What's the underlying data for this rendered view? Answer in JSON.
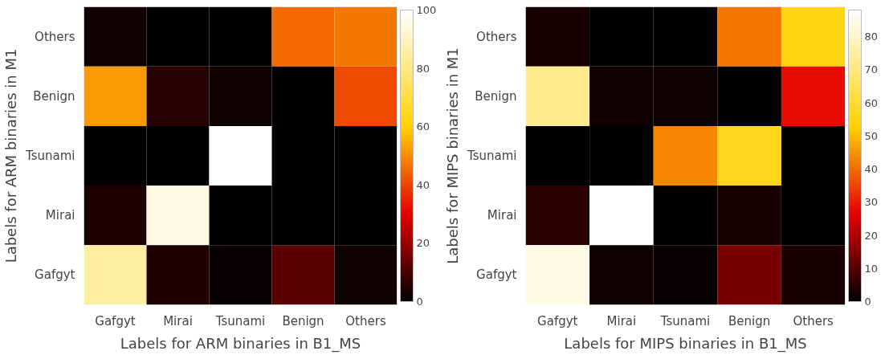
{
  "chart_data": [
    {
      "type": "heatmap",
      "xlabel": "Labels for ARM binaries in B1_MS",
      "ylabel": "Labels for ARM binaries in M1",
      "categories": [
        "Gafgyt",
        "Mirai",
        "Tsunami",
        "Benign",
        "Others"
      ],
      "y_categories": [
        "Others",
        "Benign",
        "Tsunami",
        "Mirai",
        "Gafgyt"
      ],
      "cells": [
        [
          2,
          0,
          0,
          45,
          47
        ],
        [
          52,
          5,
          2,
          0,
          41
        ],
        [
          0,
          0,
          100,
          0,
          0
        ],
        [
          4,
          95,
          0,
          0,
          0
        ],
        [
          85,
          4,
          1,
          12,
          2
        ]
      ],
      "clim": [
        0,
        100
      ],
      "cticks": [
        0,
        20,
        40,
        60,
        80,
        100
      ]
    },
    {
      "type": "heatmap",
      "xlabel": "Labels for MIPS binaries in B1_MS",
      "ylabel": "Labels for MIPS binaries in M1",
      "categories": [
        "Gafgyt",
        "Mirai",
        "Tsunami",
        "Benign",
        "Others"
      ],
      "y_categories": [
        "Others",
        "Benign",
        "Tsunami",
        "Mirai",
        "Gafgyt"
      ],
      "cells": [
        [
          3,
          0,
          0,
          41,
          55
        ],
        [
          72,
          2,
          2,
          0,
          28
        ],
        [
          0,
          0,
          43,
          57,
          0
        ],
        [
          5,
          88,
          0,
          3,
          0
        ],
        [
          84,
          2,
          1,
          14,
          3
        ]
      ],
      "clim": [
        0,
        88
      ],
      "cticks": [
        0,
        10,
        20,
        30,
        40,
        50,
        60,
        70,
        80
      ]
    }
  ]
}
